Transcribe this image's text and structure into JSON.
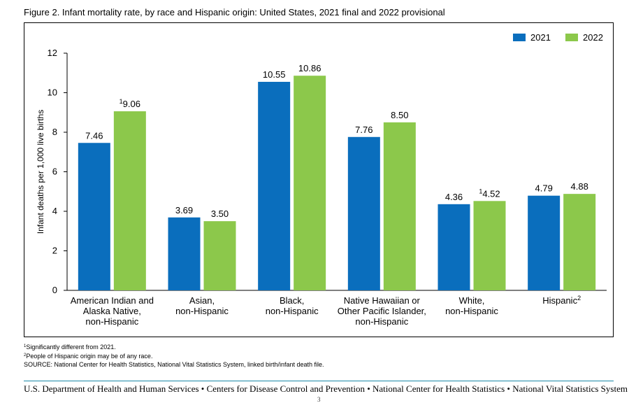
{
  "figure_title": "Figure 2. Infant mortality rate, by race and Hispanic origin: United States, 2021 final and 2022 provisional",
  "chart_data": {
    "type": "bar",
    "categories": [
      [
        "American Indian and",
        "Alaska Native,",
        "non-Hispanic"
      ],
      [
        "Asian,",
        "non-Hispanic"
      ],
      [
        "Black,",
        "non-Hispanic"
      ],
      [
        "Native Hawaiian or",
        "Other Pacific Islander,",
        "non-Hispanic"
      ],
      [
        "White,",
        "non-Hispanic"
      ],
      [
        "Hispanic"
      ]
    ],
    "category_superscripts": [
      "",
      "",
      "",
      "",
      "",
      "2"
    ],
    "series": [
      {
        "name": "2021",
        "color": "#0a6ebd",
        "values": [
          7.46,
          3.69,
          10.55,
          7.76,
          4.36,
          4.79
        ],
        "labels": [
          "7.46",
          "3.69",
          "10.55",
          "7.76",
          "4.36",
          "4.79"
        ],
        "label_superscripts": [
          "",
          "",
          "",
          "",
          "",
          ""
        ]
      },
      {
        "name": "2022",
        "color": "#8cc84b",
        "values": [
          9.06,
          3.5,
          10.86,
          8.5,
          4.52,
          4.88
        ],
        "labels": [
          "9.06",
          "3.50",
          "10.86",
          "8.50",
          "4.52",
          "4.88"
        ],
        "label_superscripts": [
          "1",
          "",
          "",
          "",
          "1",
          ""
        ]
      }
    ],
    "ylabel": "Infant deaths per 1,000 live births",
    "xlabel": "",
    "ylim": [
      0,
      12
    ],
    "yticks": [
      0,
      2,
      4,
      6,
      8,
      10,
      12
    ],
    "legend_position": "top-right",
    "grid": false
  },
  "footnotes": {
    "note1_marker": "1",
    "note1_text": "Significantly different from 2021.",
    "note2_marker": "2",
    "note2_text": "People of Hispanic origin may be of any race.",
    "source": "SOURCE: National Center for Health Statistics, National Vital Statistics System, linked birth/infant death file."
  },
  "footer": "U.S. Department of Health and Human Services • Centers for Disease Control and Prevention • National Center for Health Statistics • National Vital Statistics System",
  "page_number": "3"
}
